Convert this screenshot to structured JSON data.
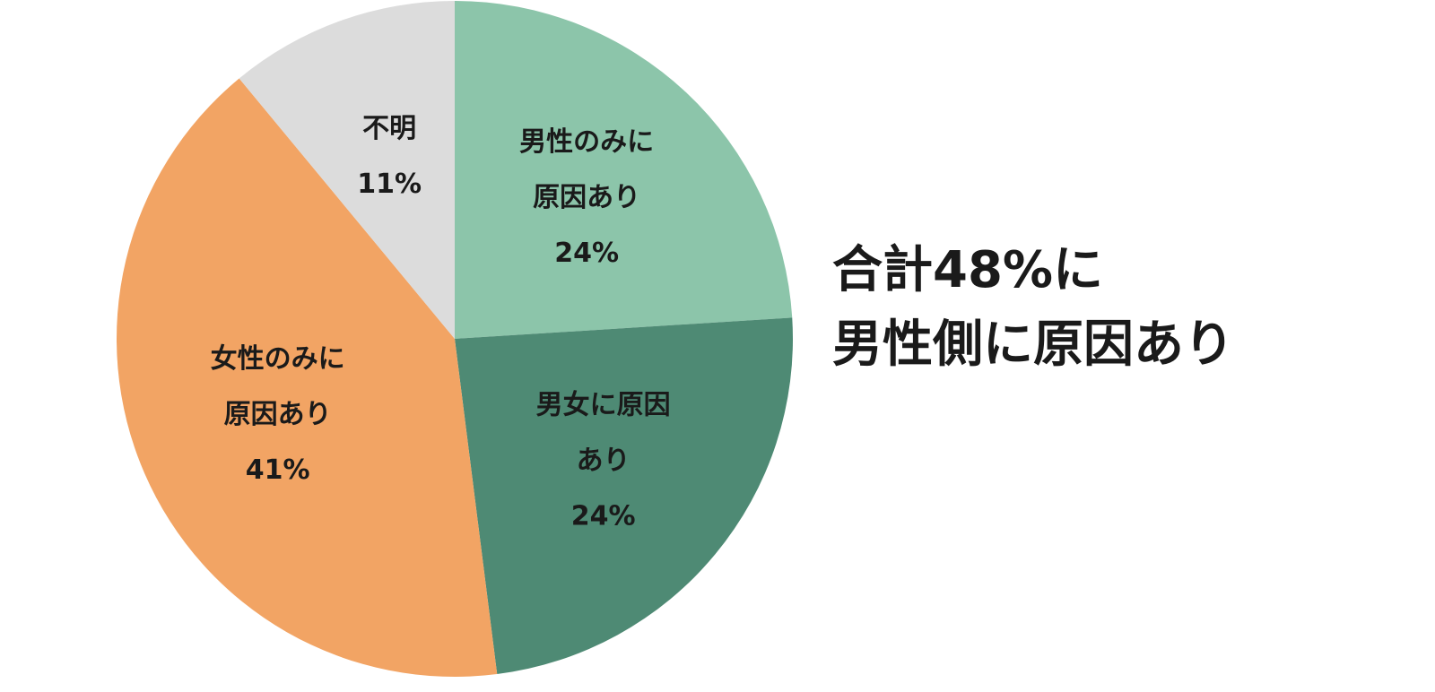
{
  "chart_data": {
    "type": "pie",
    "categories": [
      [
        "男性のみに",
        "原因あり"
      ],
      [
        "男女に原因",
        "あり"
      ],
      [
        "女性のみに",
        "原因あり"
      ],
      [
        "不明"
      ]
    ],
    "values": [
      24,
      24,
      41,
      11
    ],
    "value_labels": [
      "24%",
      "24%",
      "41%",
      "11%"
    ],
    "colors": [
      "#8cc5aa",
      "#4e8a74",
      "#f2a464",
      "#dcdcdc"
    ],
    "annotation": [
      "合計48%に",
      "男性側に原因あり"
    ]
  }
}
